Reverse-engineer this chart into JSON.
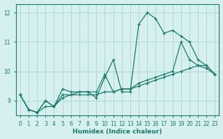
{
  "xlabel": "Humidex (Indice chaleur)",
  "bg_color": "#d6f0f0",
  "grid_color": "#b0d8d8",
  "line_color": "#1a7a6a",
  "xlim": [
    -0.5,
    23.5
  ],
  "ylim": [
    8.5,
    12.3
  ],
  "yticks": [
    9,
    10,
    11,
    12
  ],
  "xticks": [
    0,
    1,
    2,
    3,
    4,
    5,
    6,
    7,
    8,
    9,
    10,
    11,
    12,
    13,
    14,
    15,
    16,
    17,
    18,
    19,
    20,
    21,
    22,
    23
  ],
  "series": [
    [
      9.2,
      8.7,
      8.6,
      9.0,
      8.8,
      9.4,
      9.3,
      9.3,
      9.3,
      9.1,
      9.8,
      10.4,
      9.3,
      9.3,
      11.6,
      12.0,
      11.8,
      11.3,
      11.4,
      11.2,
      11.0,
      10.4,
      10.2,
      9.9
    ],
    [
      9.2,
      8.7,
      8.6,
      9.0,
      8.8,
      9.1,
      9.2,
      9.2,
      9.2,
      9.2,
      9.3,
      9.3,
      9.4,
      9.4,
      9.5,
      9.6,
      9.7,
      9.8,
      9.9,
      10.0,
      10.1,
      10.2,
      10.2,
      9.9
    ],
    [
      9.2,
      8.7,
      8.6,
      8.8,
      8.8,
      9.2,
      9.2,
      9.3,
      9.3,
      9.3,
      9.9,
      9.3,
      9.4,
      9.4,
      9.6,
      9.7,
      9.8,
      9.9,
      10.0,
      11.0,
      10.4,
      10.2,
      10.1,
      9.9
    ]
  ]
}
